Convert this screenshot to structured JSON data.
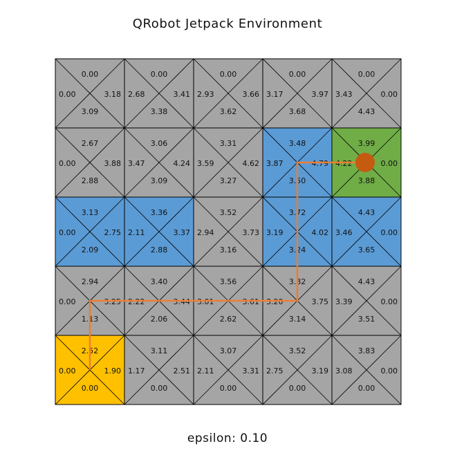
{
  "title": "QRobot Jetpack Environment",
  "footer": "epsilon: 0.10",
  "colors": {
    "default": "#a5a5a5",
    "visited": "#5b9bd5",
    "goal": "#70ad47",
    "start": "#ffc000",
    "path": "#ed7d31",
    "agent": "#c55a11",
    "line": "#000000"
  },
  "grid": {
    "rows": 5,
    "cols": 5,
    "cells": [
      [
        {
          "type": "default",
          "up": "0.00",
          "left": "0.00",
          "right": "3.18",
          "down": "3.09"
        },
        {
          "type": "default",
          "up": "0.00",
          "left": "2.68",
          "right": "3.41",
          "down": "3.38"
        },
        {
          "type": "default",
          "up": "0.00",
          "left": "2.93",
          "right": "3.66",
          "down": "3.62"
        },
        {
          "type": "default",
          "up": "0.00",
          "left": "3.17",
          "right": "3.97",
          "down": "3.68"
        },
        {
          "type": "default",
          "up": "0.00",
          "left": "3.43",
          "right": "0.00",
          "down": "4.43"
        }
      ],
      [
        {
          "type": "default",
          "up": "2.67",
          "left": "0.00",
          "right": "3.88",
          "down": "2.88"
        },
        {
          "type": "default",
          "up": "3.06",
          "left": "3.47",
          "right": "4.24",
          "down": "3.09"
        },
        {
          "type": "default",
          "up": "3.31",
          "left": "3.59",
          "right": "4.62",
          "down": "3.27"
        },
        {
          "type": "visited",
          "up": "3.48",
          "left": "3.87",
          "right": "4.79",
          "down": "3.50"
        },
        {
          "type": "goal",
          "up": "3.99",
          "left": "4.22",
          "right": "0.00",
          "down": "3.88"
        }
      ],
      [
        {
          "type": "visited",
          "up": "3.13",
          "left": "0.00",
          "right": "2.75",
          "down": "2.09"
        },
        {
          "type": "visited",
          "up": "3.36",
          "left": "2.11",
          "right": "3.37",
          "down": "2.88"
        },
        {
          "type": "default",
          "up": "3.52",
          "left": "2.94",
          "right": "3.73",
          "down": "3.16"
        },
        {
          "type": "visited",
          "up": "3.72",
          "left": "3.19",
          "right": "4.02",
          "down": "3.24"
        },
        {
          "type": "visited",
          "up": "4.43",
          "left": "3.46",
          "right": "0.00",
          "down": "3.65"
        }
      ],
      [
        {
          "type": "default",
          "up": "2.94",
          "left": "0.00",
          "right": "3.25",
          "down": "1.13"
        },
        {
          "type": "default",
          "up": "3.40",
          "left": "2.22",
          "right": "3.44",
          "down": "2.06"
        },
        {
          "type": "default",
          "up": "3.56",
          "left": "3.01",
          "right": "3.61",
          "down": "2.62"
        },
        {
          "type": "default",
          "up": "3.82",
          "left": "3.20",
          "right": "3.75",
          "down": "3.14"
        },
        {
          "type": "default",
          "up": "4.43",
          "left": "3.39",
          "right": "0.00",
          "down": "3.51"
        }
      ],
      [
        {
          "type": "start",
          "up": "2.52",
          "left": "0.00",
          "right": "1.90",
          "down": "0.00"
        },
        {
          "type": "default",
          "up": "3.11",
          "left": "1.17",
          "right": "2.51",
          "down": "0.00"
        },
        {
          "type": "default",
          "up": "3.07",
          "left": "2.11",
          "right": "3.31",
          "down": "0.00"
        },
        {
          "type": "default",
          "up": "3.52",
          "left": "2.75",
          "right": "3.19",
          "down": "0.00"
        },
        {
          "type": "default",
          "up": "3.83",
          "left": "3.08",
          "right": "0.00",
          "down": "0.00"
        }
      ]
    ]
  },
  "path": [
    [
      4,
      0
    ],
    [
      3,
      0
    ],
    [
      3,
      1
    ],
    [
      3,
      2
    ],
    [
      3,
      3
    ],
    [
      2,
      3
    ],
    [
      1,
      3
    ],
    [
      1,
      4
    ]
  ],
  "agent": {
    "row": 1,
    "col": 4
  }
}
